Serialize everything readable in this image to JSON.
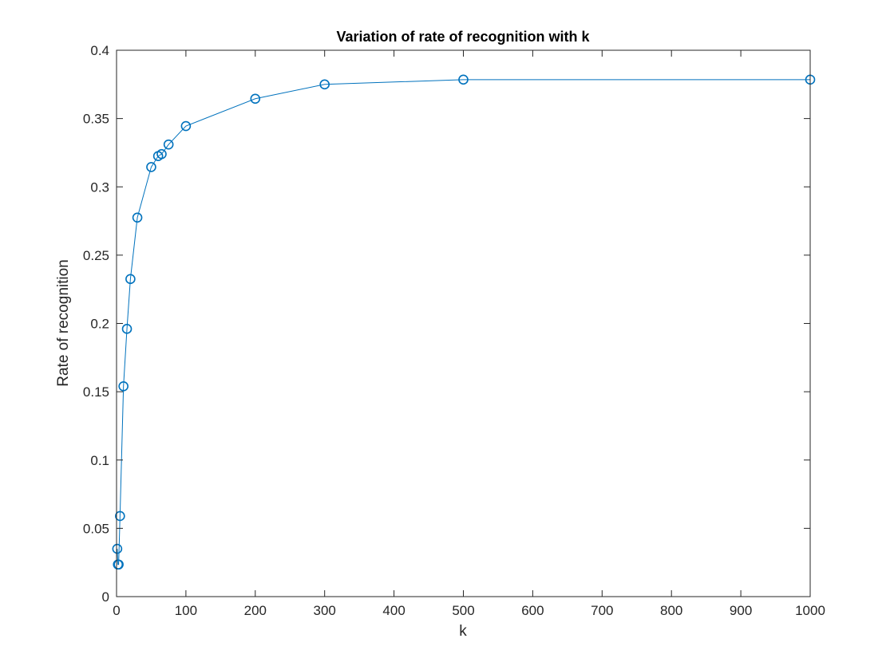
{
  "chart_data": {
    "type": "line",
    "title": "Variation of rate of recognition with k",
    "xlabel": "k",
    "ylabel": "Rate of recognition",
    "xlim": [
      0,
      1000
    ],
    "ylim": [
      0,
      0.4
    ],
    "xticks": [
      "0",
      "100",
      "200",
      "300",
      "400",
      "500",
      "600",
      "700",
      "800",
      "900",
      "1000"
    ],
    "yticks": [
      "0",
      "0.05",
      "0.1",
      "0.15",
      "0.2",
      "0.25",
      "0.3",
      "0.35",
      "0.4"
    ],
    "grid": false,
    "legend": "none",
    "marker": "circle",
    "color": "#0072BD",
    "series": [
      {
        "x": [
          1,
          2,
          3,
          5,
          10,
          15,
          20,
          30,
          50,
          60,
          65,
          75,
          100,
          200,
          300,
          500,
          1000
        ],
        "y": [
          0.035,
          0.0235,
          0.0235,
          0.059,
          0.154,
          0.196,
          0.2325,
          0.2775,
          0.3145,
          0.3225,
          0.324,
          0.331,
          0.3445,
          0.3645,
          0.375,
          0.3785,
          0.3785
        ]
      }
    ]
  }
}
